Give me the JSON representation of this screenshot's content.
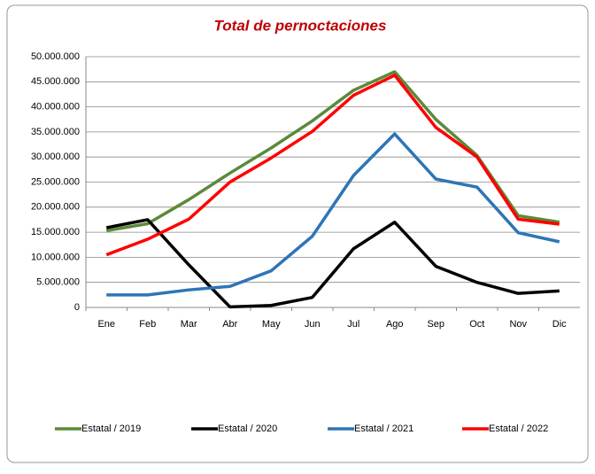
{
  "chart_data": {
    "type": "line",
    "title": "Total de pernoctaciones",
    "categories": [
      "Ene",
      "Feb",
      "Mar",
      "Abr",
      "May",
      "Jun",
      "Jul",
      "Ago",
      "Sep",
      "Oct",
      "Nov",
      "Dic"
    ],
    "series": [
      {
        "name": "Estatal / 2019",
        "color": "#5a8a3a",
        "values": [
          15300000,
          16700000,
          21500000,
          26800000,
          31800000,
          37200000,
          43300000,
          47000000,
          37500000,
          30300000,
          18300000,
          17000000
        ]
      },
      {
        "name": "Estatal / 2020",
        "color": "#000000",
        "values": [
          15900000,
          17500000,
          8500000,
          100000,
          400000,
          2000000,
          11700000,
          17000000,
          8200000,
          5000000,
          2800000,
          3300000
        ]
      },
      {
        "name": "Estatal / 2021",
        "color": "#2e75b6",
        "values": [
          2500000,
          2500000,
          3500000,
          4200000,
          7300000,
          14200000,
          26300000,
          34600000,
          25600000,
          24000000,
          14900000,
          13100000
        ]
      },
      {
        "name": "Estatal / 2022",
        "color": "#ff0000",
        "values": [
          10500000,
          13600000,
          17600000,
          25000000,
          29800000,
          35100000,
          42300000,
          46300000,
          35900000,
          30000000,
          17600000,
          16600000
        ]
      }
    ],
    "ylim": [
      0,
      50000000
    ],
    "yticks": [
      0,
      {
        "value": 5000000,
        "label": "5.000.000"
      },
      {
        "value": 10000000,
        "label": "10.000.000"
      },
      {
        "value": 15000000,
        "label": "15.000.000"
      },
      {
        "value": 20000000,
        "label": "20.000.000"
      },
      {
        "value": 25000000,
        "label": "25.000.000"
      },
      {
        "value": 30000000,
        "label": "30.000.000"
      },
      {
        "value": 35000000,
        "label": "35.000.000"
      },
      {
        "value": 40000000,
        "label": "40.000.000"
      },
      {
        "value": 45000000,
        "label": "45.000.000"
      },
      {
        "value": 50000000,
        "label": "50.000.000"
      }
    ],
    "grid": true,
    "legend": "bottom"
  }
}
